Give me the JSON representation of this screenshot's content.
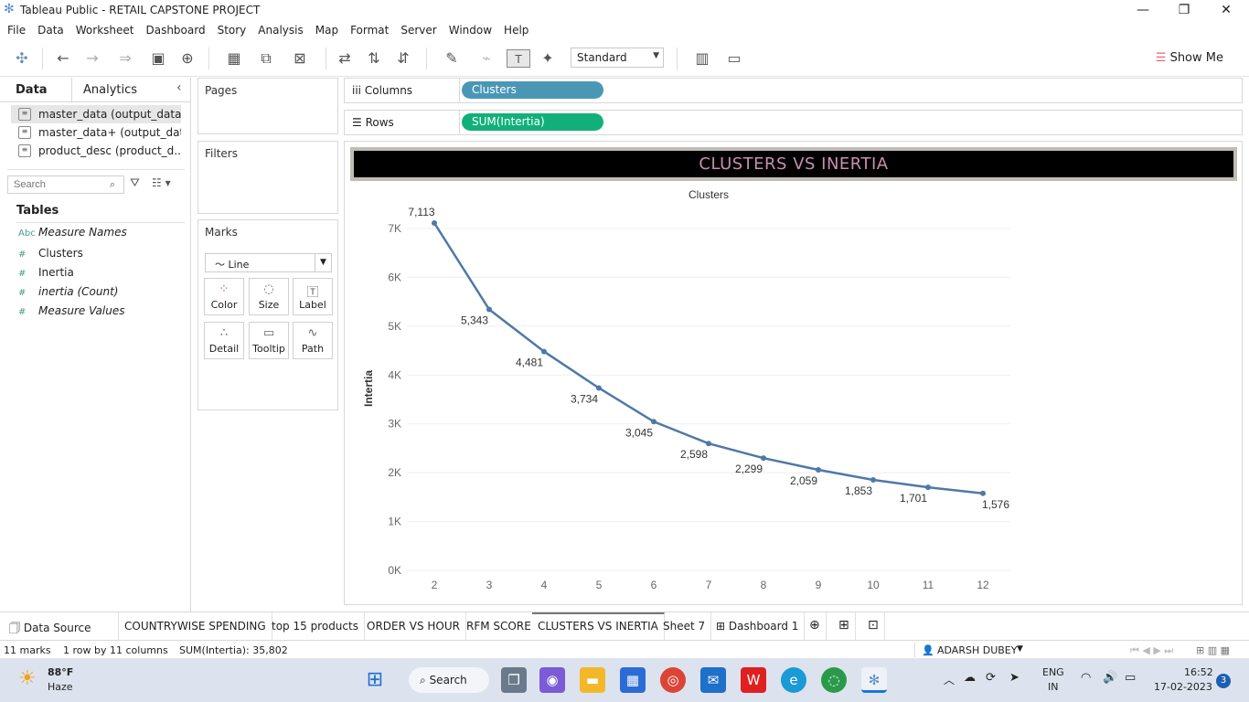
{
  "window": {
    "title": "Tableau Public - RETAIL CAPSTONE PROJECT"
  },
  "menu": [
    "File",
    "Data",
    "Worksheet",
    "Dashboard",
    "Story",
    "Analysis",
    "Map",
    "Format",
    "Server",
    "Window",
    "Help"
  ],
  "toolbar": {
    "fit": "Standard",
    "show_me": "Show Me"
  },
  "left": {
    "tabs": [
      "Data",
      "Analytics"
    ],
    "sources": [
      "master_data (output_data)",
      "master_data+ (output_data)",
      "product_desc (product_d..."
    ],
    "search_placeholder": "Search",
    "tables_label": "Tables",
    "fields": [
      {
        "kind": "Abc",
        "name": "Measure Names"
      },
      {
        "kind": "#",
        "name": "Clusters"
      },
      {
        "kind": "#",
        "name": "Inertia"
      },
      {
        "kind": "#",
        "name": "inertia (Count)"
      },
      {
        "kind": "#",
        "name": "Measure Values"
      }
    ]
  },
  "cards": {
    "pages": "Pages",
    "filters": "Filters",
    "marks": "Marks",
    "mark_type": "Line",
    "mark_buttons": [
      "Color",
      "Size",
      "Label",
      "Detail",
      "Tooltip",
      "Path"
    ]
  },
  "shelves": {
    "columns_label": "Columns",
    "columns_pill": "Clusters",
    "rows_label": "Rows",
    "rows_pill": "SUM(Intertia)",
    "columns_color": "#4a97b5",
    "rows_color": "#11b07a"
  },
  "view": {
    "title": "CLUSTERS VS INERTIA"
  },
  "chart_data": {
    "type": "line",
    "title": "",
    "xlabel": "Clusters",
    "ylabel": "Intertia",
    "x": [
      2,
      3,
      4,
      5,
      6,
      7,
      8,
      9,
      10,
      11,
      12
    ],
    "values": [
      7113,
      5343,
      4481,
      3734,
      3045,
      2598,
      2299,
      2059,
      1853,
      1701,
      1576
    ],
    "labels": [
      "7,113",
      "5,343",
      "4,481",
      "3,734",
      "3,045",
      "2,598",
      "2,299",
      "2,059",
      "1,853",
      "1,701",
      "1,576"
    ],
    "y_ticks": [
      "0K",
      "1K",
      "2K",
      "3K",
      "4K",
      "5K",
      "6K",
      "7K"
    ],
    "ylim": [
      0,
      7000
    ],
    "line_color": "#4e79a7",
    "grid": true
  },
  "sheet_tabs": [
    "Data Source",
    "COUNTRYWISE SPENDING",
    "top 15 products",
    "ORDER VS HOUR",
    "RFM SCORE",
    "CLUSTERS VS INERTIA",
    "Sheet 7",
    "Dashboard 1"
  ],
  "status": {
    "marks": "11 marks",
    "dims": "1 row by 11 columns",
    "sum": "SUM(Intertia): 35,802",
    "user": "ADARSH DUBEY"
  },
  "taskbar": {
    "temp": "88°F",
    "weather": "Haze",
    "search": "Search",
    "lang1": "ENG",
    "lang2": "IN",
    "time": "16:52",
    "date": "17-02-2023",
    "badge": "3"
  }
}
